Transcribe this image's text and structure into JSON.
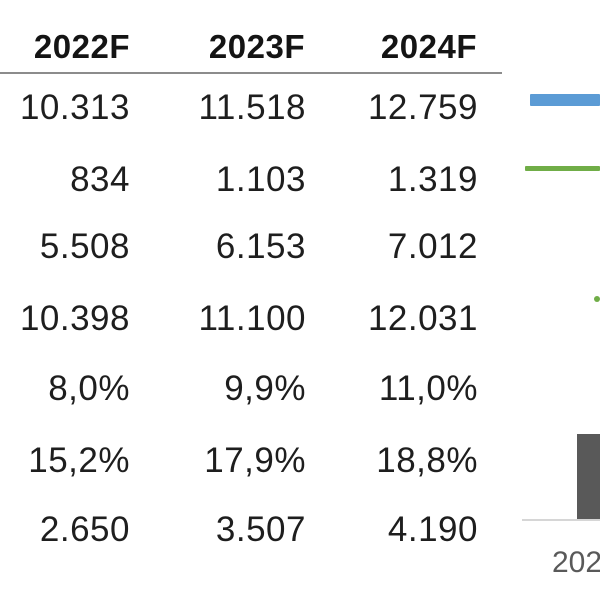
{
  "table": {
    "headers": [
      "2022F",
      "2023F",
      "2024F"
    ],
    "rows": [
      [
        "10.313",
        "11.518",
        "12.759"
      ],
      [
        "834",
        "1.103",
        "1.319"
      ],
      [
        "5.508",
        "6.153",
        "7.012"
      ],
      [
        "10.398",
        "11.100",
        "12.031"
      ],
      [
        "8,0%",
        "9,9%",
        "11,0%"
      ],
      [
        "15,2%",
        "17,9%",
        "18,8%"
      ],
      [
        "2.650",
        "3.507",
        "4.190"
      ]
    ]
  },
  "chart_partial": {
    "legend_colors": [
      "#5b9bd5",
      "#70ad47"
    ],
    "bar_color": "#595959",
    "axis_label": "202"
  }
}
